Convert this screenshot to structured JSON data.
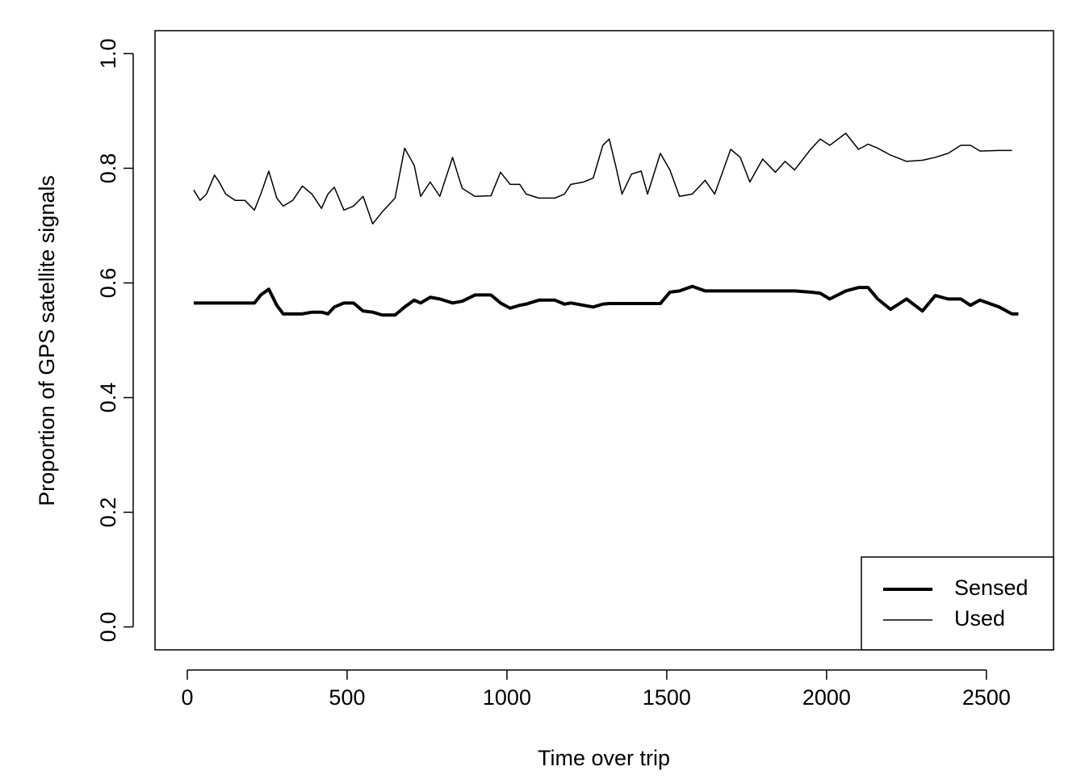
{
  "chart_data": {
    "type": "line",
    "xlabel": "Time over trip",
    "ylabel": "Proportion of GPS satellite signals",
    "x": [
      20,
      40,
      60,
      85,
      100,
      120,
      150,
      180,
      210,
      230,
      255,
      280,
      300,
      330,
      360,
      390,
      420,
      440,
      460,
      490,
      520,
      550,
      580,
      610,
      650,
      680,
      710,
      730,
      760,
      790,
      830,
      860,
      900,
      950,
      980,
      1010,
      1040,
      1060,
      1100,
      1150,
      1180,
      1200,
      1240,
      1270,
      1300,
      1320,
      1340,
      1360,
      1390,
      1420,
      1440,
      1480,
      1510,
      1540,
      1580,
      1620,
      1650,
      1700,
      1730,
      1760,
      1800,
      1840,
      1870,
      1900,
      1950,
      1980,
      2010,
      2060,
      2100,
      2130,
      2160,
      2200,
      2250,
      2300,
      2340,
      2380,
      2420,
      2450,
      2480,
      2540,
      2580,
      2600
    ],
    "series": [
      {
        "name": "Sensed",
        "color": "#000000",
        "width": 4,
        "values": [
          0.565,
          0.565,
          0.565,
          0.565,
          0.565,
          0.565,
          0.565,
          0.565,
          0.565,
          0.579,
          0.589,
          0.561,
          0.546,
          0.546,
          0.546,
          0.549,
          0.549,
          0.546,
          0.558,
          0.565,
          0.565,
          0.551,
          0.549,
          0.544,
          0.544,
          0.558,
          0.57,
          0.565,
          0.575,
          0.572,
          0.565,
          0.568,
          0.579,
          0.579,
          0.565,
          0.556,
          0.561,
          0.563,
          0.57,
          0.57,
          0.563,
          0.565,
          0.561,
          0.558,
          0.563,
          0.564,
          0.564,
          0.564,
          0.564,
          0.564,
          0.564,
          0.564,
          0.584,
          0.586,
          0.594,
          0.586,
          0.586,
          0.586,
          0.586,
          0.586,
          0.586,
          0.586,
          0.586,
          0.586,
          0.584,
          0.582,
          0.572,
          0.586,
          0.592,
          0.592,
          0.572,
          0.554,
          0.572,
          0.551,
          0.578,
          0.572,
          0.572,
          0.561,
          0.57,
          0.558,
          0.546,
          0.546
        ]
      },
      {
        "name": "Used",
        "color": "#000000",
        "width": 1.5,
        "values": [
          0.762,
          0.744,
          0.755,
          0.788,
          0.776,
          0.755,
          0.744,
          0.744,
          0.727,
          0.755,
          0.795,
          0.748,
          0.734,
          0.744,
          0.769,
          0.755,
          0.73,
          0.755,
          0.767,
          0.727,
          0.734,
          0.751,
          0.703,
          0.724,
          0.748,
          0.835,
          0.805,
          0.751,
          0.776,
          0.751,
          0.819,
          0.765,
          0.751,
          0.752,
          0.793,
          0.772,
          0.772,
          0.755,
          0.748,
          0.748,
          0.755,
          0.772,
          0.776,
          0.783,
          0.84,
          0.851,
          0.805,
          0.755,
          0.79,
          0.795,
          0.755,
          0.826,
          0.797,
          0.751,
          0.755,
          0.779,
          0.755,
          0.833,
          0.819,
          0.776,
          0.816,
          0.793,
          0.812,
          0.797,
          0.833,
          0.851,
          0.84,
          0.861,
          0.833,
          0.842,
          0.835,
          0.823,
          0.812,
          0.814,
          0.819,
          0.826,
          0.84,
          0.84,
          0.83,
          0.831,
          0.831,
          null
        ]
      }
    ],
    "xlim": [
      -101,
      2710
    ],
    "xticks": [
      0,
      500,
      1000,
      1500,
      2000,
      2500
    ],
    "ylim": [
      -0.04,
      1.04
    ],
    "yticks": [
      {
        "value": 0,
        "label": "0.0"
      },
      0.2,
      0.4,
      0.6,
      0.8,
      {
        "value": 1,
        "label": "1.0"
      }
    ],
    "legend": "bottomright",
    "grid": false
  }
}
